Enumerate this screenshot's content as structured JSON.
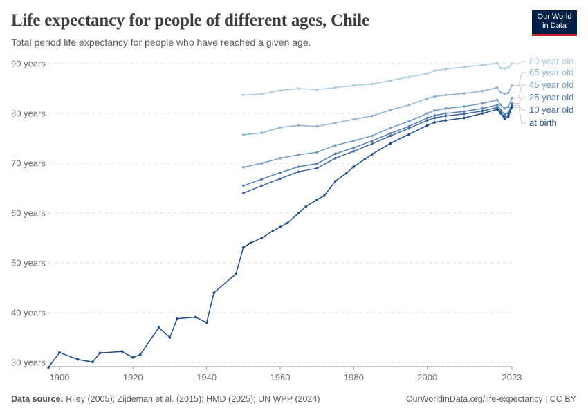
{
  "header": {
    "title": "Life expectancy for people of different ages, Chile",
    "subtitle": "Total period life expectancy for people who have reached a given age.",
    "logo_line1": "Our World",
    "logo_line2": "in Data"
  },
  "footer": {
    "source_label": "Data source:",
    "source_text": "Riley (2005); Zijdeman et al. (2015); HMD (2025); UN WPP (2024)",
    "credit": "OurWorldinData.org/life-expectancy | CC BY"
  },
  "colors": {
    "at_birth": "#1a4d8f",
    "age10": "#3a67a3",
    "age25": "#5380b5",
    "age45": "#6f9bc6",
    "age65": "#8cb3d3",
    "age80": "#a8cde0",
    "grid": "#dddddd",
    "logo_bg": "#002147",
    "logo_accent": "#ce261e"
  },
  "chart_data": {
    "type": "line",
    "title": "Life expectancy for people of different ages, Chile",
    "subtitle": "Total period life expectancy for people who have reached a given age.",
    "ylim": [
      30,
      90
    ],
    "xlim": [
      1897,
      2023
    ],
    "y_ticks": [
      30,
      40,
      50,
      60,
      70,
      80,
      90
    ],
    "y_tick_labels": [
      "30 years",
      "40 years",
      "50 years",
      "60 years",
      "70 years",
      "80 years",
      "90 years"
    ],
    "x_ticks": [
      1900,
      1920,
      1940,
      1960,
      1980,
      2000,
      2023
    ],
    "x_tick_labels": [
      "1900",
      "1920",
      "1940",
      "1960",
      "1980",
      "2000",
      "2023"
    ],
    "grid": "horizontal dashed",
    "legend": "right, labels at line ends",
    "series": [
      {
        "name": "80 year old",
        "color_key": "age80",
        "x": [
          1950,
          1955,
          1960,
          1965,
          1970,
          1975,
          1980,
          1985,
          1990,
          1995,
          2000,
          2002,
          2005,
          2010,
          2015,
          2019,
          2020,
          2021,
          2022,
          2023
        ],
        "values": [
          83.7,
          83.9,
          84.6,
          85.0,
          84.8,
          85.2,
          85.6,
          85.9,
          86.6,
          87.3,
          88.0,
          88.6,
          88.9,
          89.3,
          89.7,
          90.1,
          89.1,
          89.0,
          89.2,
          90.0
        ]
      },
      {
        "name": "65 year old",
        "color_key": "age65",
        "x": [
          1950,
          1955,
          1960,
          1965,
          1970,
          1975,
          1980,
          1985,
          1990,
          1995,
          2000,
          2002,
          2005,
          2010,
          2015,
          2019,
          2020,
          2021,
          2022,
          2023
        ],
        "values": [
          75.7,
          76.1,
          77.2,
          77.6,
          77.4,
          78.1,
          78.8,
          79.5,
          80.7,
          81.7,
          83.0,
          83.4,
          83.7,
          84.0,
          84.5,
          85.2,
          84.2,
          83.9,
          84.1,
          85.6
        ]
      },
      {
        "name": "45 year old",
        "color_key": "age45",
        "x": [
          1950,
          1955,
          1960,
          1965,
          1970,
          1975,
          1980,
          1985,
          1990,
          1995,
          2000,
          2002,
          2005,
          2010,
          2015,
          2019,
          2020,
          2021,
          2022,
          2023
        ],
        "values": [
          69.2,
          70.0,
          71.0,
          71.7,
          72.2,
          73.6,
          74.5,
          75.5,
          77.1,
          78.4,
          80.0,
          80.6,
          81.0,
          81.4,
          82.0,
          82.7,
          81.7,
          81.0,
          81.3,
          83.1
        ]
      },
      {
        "name": "25 year old",
        "color_key": "age25",
        "x": [
          1950,
          1955,
          1960,
          1965,
          1970,
          1975,
          1980,
          1985,
          1990,
          1995,
          2000,
          2002,
          2005,
          2010,
          2015,
          2019,
          2020,
          2021,
          2022,
          2023
        ],
        "values": [
          65.5,
          66.8,
          68.1,
          69.3,
          69.9,
          71.9,
          73.1,
          74.5,
          76.0,
          77.4,
          79.1,
          79.6,
          80.0,
          80.4,
          81.0,
          81.7,
          80.6,
          79.8,
          80.1,
          82.0
        ]
      },
      {
        "name": "10 year old",
        "color_key": "age10",
        "x": [
          1950,
          1955,
          1960,
          1965,
          1970,
          1975,
          1980,
          1985,
          1990,
          1995,
          2000,
          2002,
          2005,
          2010,
          2015,
          2019,
          2020,
          2021,
          2022,
          2023
        ],
        "values": [
          64.0,
          65.5,
          66.9,
          68.3,
          69.0,
          71.0,
          72.4,
          73.9,
          75.5,
          77.0,
          78.6,
          79.1,
          79.5,
          79.9,
          80.5,
          81.2,
          80.1,
          79.3,
          79.6,
          81.6
        ]
      },
      {
        "name": "at birth",
        "color_key": "at_birth",
        "x": [
          1897,
          1900,
          1905,
          1909,
          1911,
          1917,
          1920,
          1922,
          1927,
          1930,
          1932,
          1937,
          1940,
          1942,
          1948,
          1950,
          1952,
          1955,
          1958,
          1960,
          1962,
          1965,
          1967,
          1970,
          1972,
          1975,
          1978,
          1980,
          1983,
          1985,
          1990,
          1995,
          2000,
          2002,
          2005,
          2010,
          2015,
          2019,
          2020,
          2021,
          2022,
          2023
        ],
        "values": [
          29.0,
          32.0,
          30.6,
          30.1,
          31.9,
          32.2,
          31.0,
          31.6,
          37.0,
          35.0,
          38.8,
          39.1,
          38.0,
          44.0,
          47.8,
          53.1,
          54.0,
          55.0,
          56.4,
          57.2,
          58.0,
          60.0,
          61.3,
          62.7,
          63.5,
          66.4,
          68.0,
          69.3,
          70.8,
          71.8,
          74.0,
          75.8,
          77.6,
          78.2,
          78.6,
          79.1,
          80.0,
          80.8,
          80.0,
          78.9,
          79.3,
          81.2
        ]
      }
    ]
  }
}
